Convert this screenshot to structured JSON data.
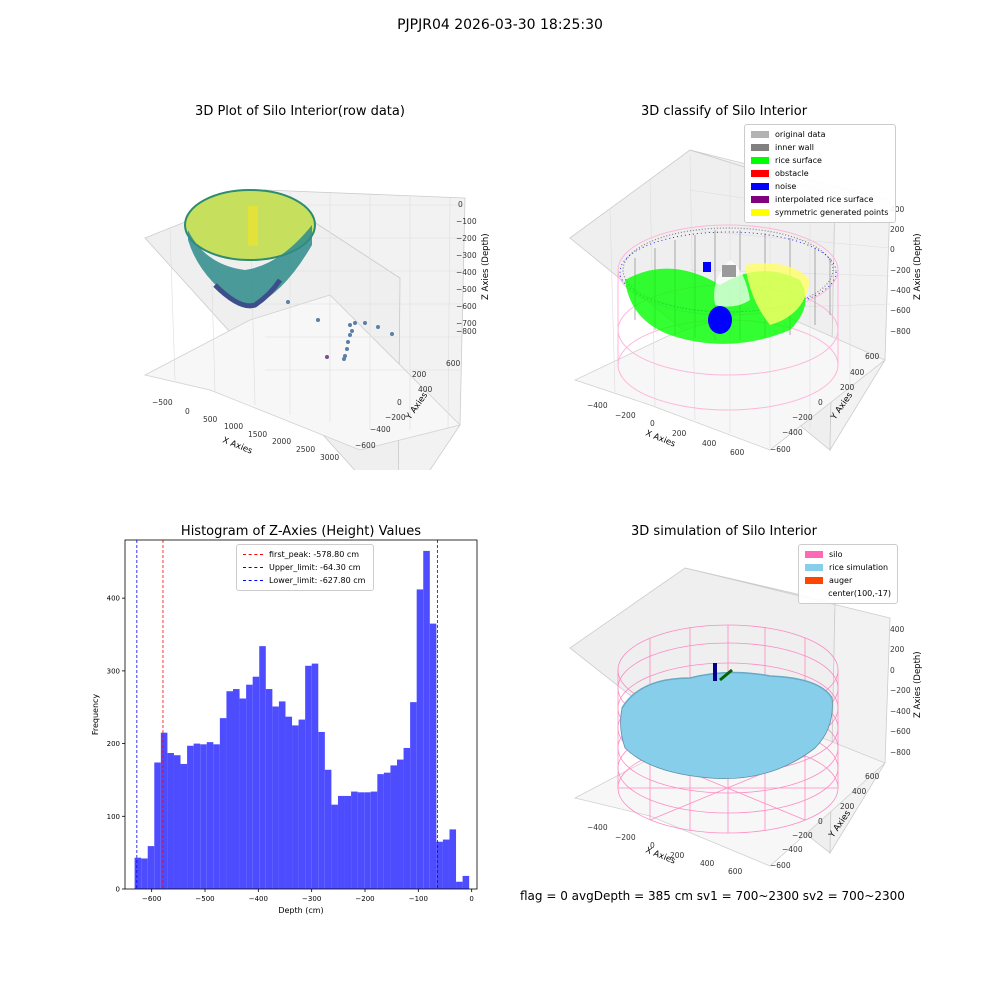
{
  "page": {
    "suptitle": "PJPJR04 2026-03-30 18:25:30",
    "footer": "flag = 0     avgDepth = 385 cm  sv1 = 700~2300  sv2 = 700~2300"
  },
  "colors": {
    "original": "#b3b3b3",
    "inner_wall": "#808080",
    "rice_surface": "#00ff00",
    "obstacle": "#ff0000",
    "noise": "#0000ff",
    "interpolated": "#800080",
    "symmetric": "#ffff00",
    "silo": "#ff69b4",
    "rice_sim": "#87ceeb",
    "auger": "#ff4500",
    "hist_bar": "#4d4dff",
    "peak_line": "#ff0000",
    "limit_line": "#0000ff"
  },
  "plot1": {
    "title": "3D Plot of Silo Interior(row data)",
    "xlabel": "X Axies",
    "ylabel": "Y Axies",
    "zlabel": "Z Axies (Depth)",
    "xticks": [
      "−500",
      "0",
      "500",
      "1000",
      "1500",
      "2000",
      "2500",
      "3000"
    ],
    "yticks": [
      "600",
      "400",
      "200",
      "0",
      "−200",
      "−400",
      "−600"
    ],
    "zticks": [
      "0",
      "−100",
      "−200",
      "−300",
      "−400",
      "−500",
      "−600",
      "−700",
      "−800"
    ]
  },
  "plot2": {
    "title": "3D classify of Silo Interior",
    "xlabel": "X Axies",
    "ylabel": "Y Axies",
    "zlabel": "Z Axies (Depth)",
    "xticks": [
      "−400",
      "−200",
      "0",
      "200",
      "400",
      "600"
    ],
    "yticks": [
      "600",
      "400",
      "200",
      "0",
      "−200",
      "−400",
      "−600"
    ],
    "zticks": [
      "400",
      "200",
      "0",
      "−200",
      "−400",
      "−600",
      "−800"
    ],
    "legend": [
      {
        "label": "original data",
        "color": "#b3b3b3"
      },
      {
        "label": "inner wall",
        "color": "#808080"
      },
      {
        "label": "rice surface",
        "color": "#00ff00"
      },
      {
        "label": "obstacle",
        "color": "#ff0000"
      },
      {
        "label": "noise",
        "color": "#0000ff"
      },
      {
        "label": "interpolated rice surface",
        "color": "#800080"
      },
      {
        "label": "symmetric generated points",
        "color": "#ffff00"
      }
    ]
  },
  "plot4": {
    "title": "3D simulation of Silo Interior",
    "xlabel": "X Axies",
    "ylabel": "Y Axies",
    "zlabel": "Z Axies (Depth)",
    "xticks": [
      "−400",
      "−200",
      "0",
      "200",
      "400",
      "600"
    ],
    "yticks": [
      "600",
      "400",
      "200",
      "0",
      "−200",
      "−400",
      "−600"
    ],
    "zticks": [
      "400",
      "200",
      "0",
      "−200",
      "−400",
      "−600",
      "−800"
    ],
    "legend": [
      {
        "label": "silo",
        "color": "#ff69b4"
      },
      {
        "label": "rice simulation",
        "color": "#87ceeb"
      },
      {
        "label": "auger",
        "color": "#ff4500"
      },
      {
        "label": "center(100,-17)",
        "color": ""
      }
    ]
  },
  "chart_data": {
    "type": "bar",
    "title": "Histogram of Z-Axies (Height) Values",
    "xlabel": "Depth (cm)",
    "ylabel": "Frequency",
    "xlim": [
      -650,
      10
    ],
    "ylim": [
      0,
      480
    ],
    "xticks": [
      -600,
      -500,
      -400,
      -300,
      -200,
      -100,
      0
    ],
    "xtick_labels": [
      "−600",
      "−500",
      "−400",
      "−300",
      "−200",
      "−100",
      "0"
    ],
    "yticks": [
      0,
      100,
      200,
      300,
      400
    ],
    "bin_start": -632,
    "bin_width": 12.3,
    "values": [
      43,
      42,
      59,
      174,
      215,
      187,
      184,
      172,
      197,
      200,
      199,
      202,
      199,
      235,
      272,
      275,
      262,
      281,
      292,
      334,
      275,
      251,
      258,
      237,
      225,
      233,
      307,
      310,
      216,
      164,
      116,
      128,
      128,
      134,
      133,
      133,
      134,
      158,
      160,
      170,
      178,
      194,
      257,
      412,
      465,
      365,
      65,
      68,
      82,
      10,
      18
    ],
    "vlines": [
      {
        "label": "first_peak: -578.80 cm",
        "x": -578.8,
        "color": "#ff0000"
      },
      {
        "label": "Upper_limit: -64.30 cm",
        "x": -64.3,
        "color": "#0000ff"
      },
      {
        "label": "Lower_limit: -627.80 cm",
        "x": -627.8,
        "color": "#0000ff"
      }
    ],
    "legend_position": "top-center"
  }
}
